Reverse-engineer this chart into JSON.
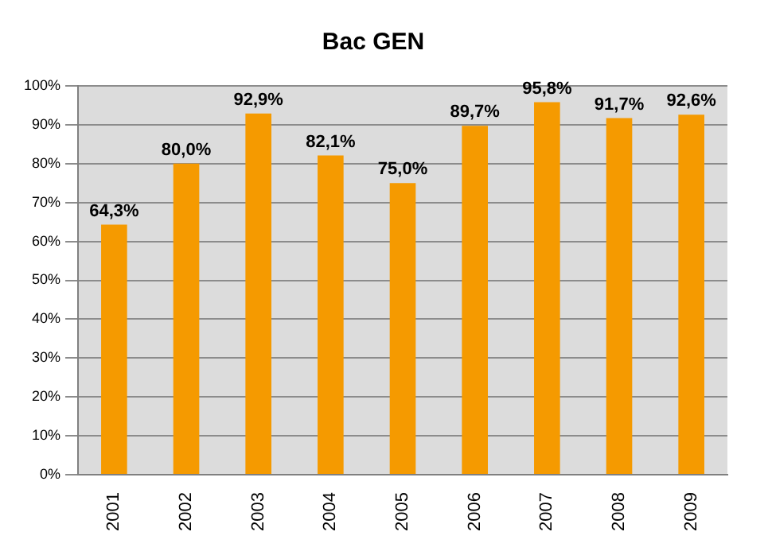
{
  "chart_data": {
    "type": "bar",
    "title": "Bac GEN",
    "categories": [
      "2001",
      "2002",
      "2003",
      "2004",
      "2005",
      "2006",
      "2007",
      "2008",
      "2009"
    ],
    "values": [
      64.3,
      80.0,
      92.9,
      82.1,
      75.0,
      89.7,
      95.8,
      91.7,
      92.6
    ],
    "value_labels": [
      "64,3%",
      "80,0%",
      "92,9%",
      "82,1%",
      "75,0%",
      "89,7%",
      "95,8%",
      "91,7%",
      "92,6%"
    ],
    "color": "#f59a00",
    "ylim": [
      0,
      100
    ],
    "yticks": [
      {
        "value": 0,
        "label": "0%"
      },
      {
        "value": 10,
        "label": "10%"
      },
      {
        "value": 20,
        "label": "20%"
      },
      {
        "value": 30,
        "label": "30%"
      },
      {
        "value": 40,
        "label": "40%"
      },
      {
        "value": 50,
        "label": "50%"
      },
      {
        "value": 60,
        "label": "60%"
      },
      {
        "value": 70,
        "label": "70%"
      },
      {
        "value": 80,
        "label": "80%"
      },
      {
        "value": 90,
        "label": "90%"
      },
      {
        "value": 100,
        "label": "100%"
      }
    ],
    "grid": "y",
    "legend": false
  }
}
